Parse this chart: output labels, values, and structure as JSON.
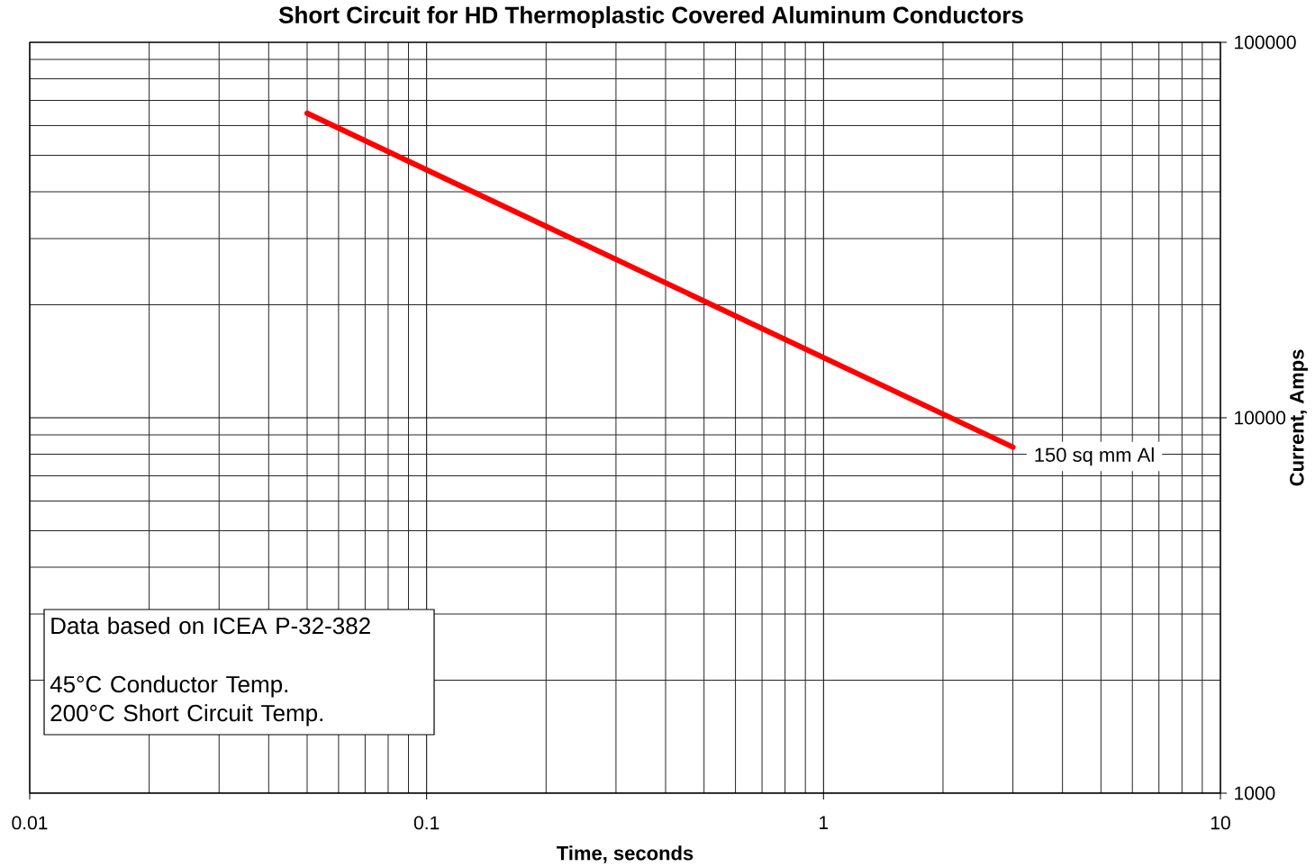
{
  "chart_data": {
    "type": "line",
    "title": "Short Circuit for HD Thermoplastic Covered Aluminum Conductors",
    "xlabel": "Time, seconds",
    "ylabel": "Current, Amps",
    "x": [
      0.05,
      3
    ],
    "series": [
      {
        "name": "150 sq mm Al",
        "color": "#ff0000",
        "values": [
          64700,
          8350
        ]
      }
    ],
    "xlim": [
      0.01,
      10
    ],
    "ylim": [
      1000,
      100000
    ],
    "xticks": [
      0.01,
      0.1,
      1,
      10
    ],
    "yticks": [
      1000,
      10000,
      100000
    ],
    "log": "xy",
    "grid": true,
    "line_style": "solid",
    "annotations": [
      "Data based on ICEA P-32-382",
      "45°C Conductor Temp.",
      "200°C Short Circuit Temp."
    ]
  }
}
